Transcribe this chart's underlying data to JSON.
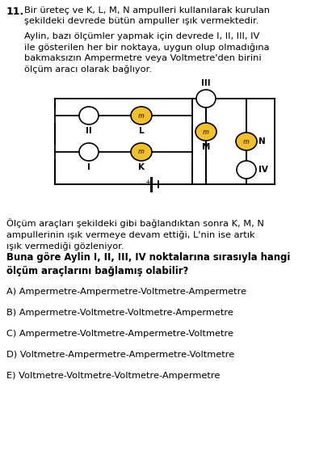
{
  "question_number": "11.",
  "para1": "Bir üreteç ve K, L, M, N ampulleri kullanılarak kurulan\nşekildeki devrede bütün ampuller ışık vermektedir.",
  "para2": "Aylin, bazı ölçümler yapmak için devrede I, II, III, IV\nile gösterilen her bir noktaya, uygun olup olmadığına\nbakmaksızın Ampermetre veya Voltmetre'den birini\nölçüm aracı olarak bağlıyor.",
  "para3": "Ölçüm araçları şekildeki gibi bağlandıktan sonra K, M, N\nampullerinin ışık vermeye devam ettiği, L'nin ise artık\nışık vermediği gözleniyor.",
  "bold_q": "Buna göre Aylin I, II, III, IV noktalarına sırasıyla hangi\nölçüm araçlarını bağlamış olabilir?",
  "options": [
    "A) Ampermetre-Ampermetre-Voltmetre-Ampermetre",
    "B) Ampermetre-Voltmetre-Voltmetre-Ampermetre",
    "C) Ampermetre-Voltmetre-Ampermetre-Voltmetre",
    "D) Voltmetre-Ampermetre-Ampermetre-Voltmetre",
    "E) Voltmetre-Voltmetre-Voltmetre-Ampermetre"
  ],
  "bg_color": "#ffffff",
  "line_color": "#000000",
  "yellow": "#f0c030",
  "white": "#ffffff",
  "black": "#000000",
  "text_fs": 8.2,
  "bold_fs": 8.4,
  "opt_fs": 8.2
}
